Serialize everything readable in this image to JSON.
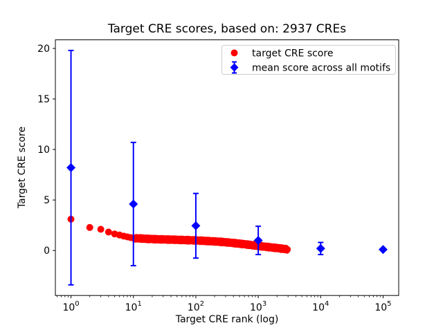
{
  "chart_data": {
    "type": "scatter",
    "title": "Target CRE scores, based on: 2937 CREs",
    "xlabel": "Target CRE rank (log)",
    "ylabel": "Target CRE score",
    "x_scale": "log",
    "xlim_log10": [
      -0.25,
      5.25
    ],
    "ylim": [
      -4.45,
      20.85
    ],
    "x_ticks_exponents": [
      0,
      1,
      2,
      3,
      4,
      5
    ],
    "x_tick_base": "10",
    "y_ticks": [
      0,
      5,
      10,
      15,
      20
    ],
    "grid": false,
    "background": "#ffffff",
    "axis_color": "#000000",
    "legend": {
      "position": "upper right",
      "border_color": "#cccccc",
      "entries": [
        {
          "label": "target CRE score",
          "marker": "circle",
          "color": "#ff0000"
        },
        {
          "label": "mean score across all motifs",
          "marker": "diamond-errorbar",
          "color": "#0000ff"
        }
      ]
    },
    "series": [
      {
        "name": "target CRE score",
        "type": "scatter",
        "marker": "circle",
        "color": "#ff0000",
        "n_points": 2937,
        "rank_range": [
          1,
          2937
        ],
        "anchors_rank_score": [
          [
            1,
            3.1
          ],
          [
            2,
            2.28
          ],
          [
            3,
            2.1
          ],
          [
            4,
            1.83
          ],
          [
            5,
            1.64
          ],
          [
            6,
            1.53
          ],
          [
            7,
            1.42
          ],
          [
            8,
            1.35
          ],
          [
            9,
            1.28
          ],
          [
            10,
            1.23
          ],
          [
            20,
            1.13
          ],
          [
            50,
            1.06
          ],
          [
            100,
            1.0
          ],
          [
            200,
            0.9
          ],
          [
            300,
            0.82
          ],
          [
            500,
            0.68
          ],
          [
            700,
            0.58
          ],
          [
            1000,
            0.45
          ],
          [
            1500,
            0.33
          ],
          [
            2000,
            0.25
          ],
          [
            2500,
            0.17
          ],
          [
            2937,
            0.12
          ]
        ]
      },
      {
        "name": "mean score across all motifs",
        "type": "errorbar",
        "marker": "diamond",
        "color": "#0000ff",
        "x": [
          1,
          10,
          100,
          1000,
          10000,
          100000
        ],
        "y": [
          8.2,
          4.6,
          2.45,
          1.0,
          0.2,
          0.1
        ],
        "yerr": [
          11.6,
          6.1,
          3.2,
          1.4,
          0.6,
          0.05
        ]
      }
    ]
  }
}
